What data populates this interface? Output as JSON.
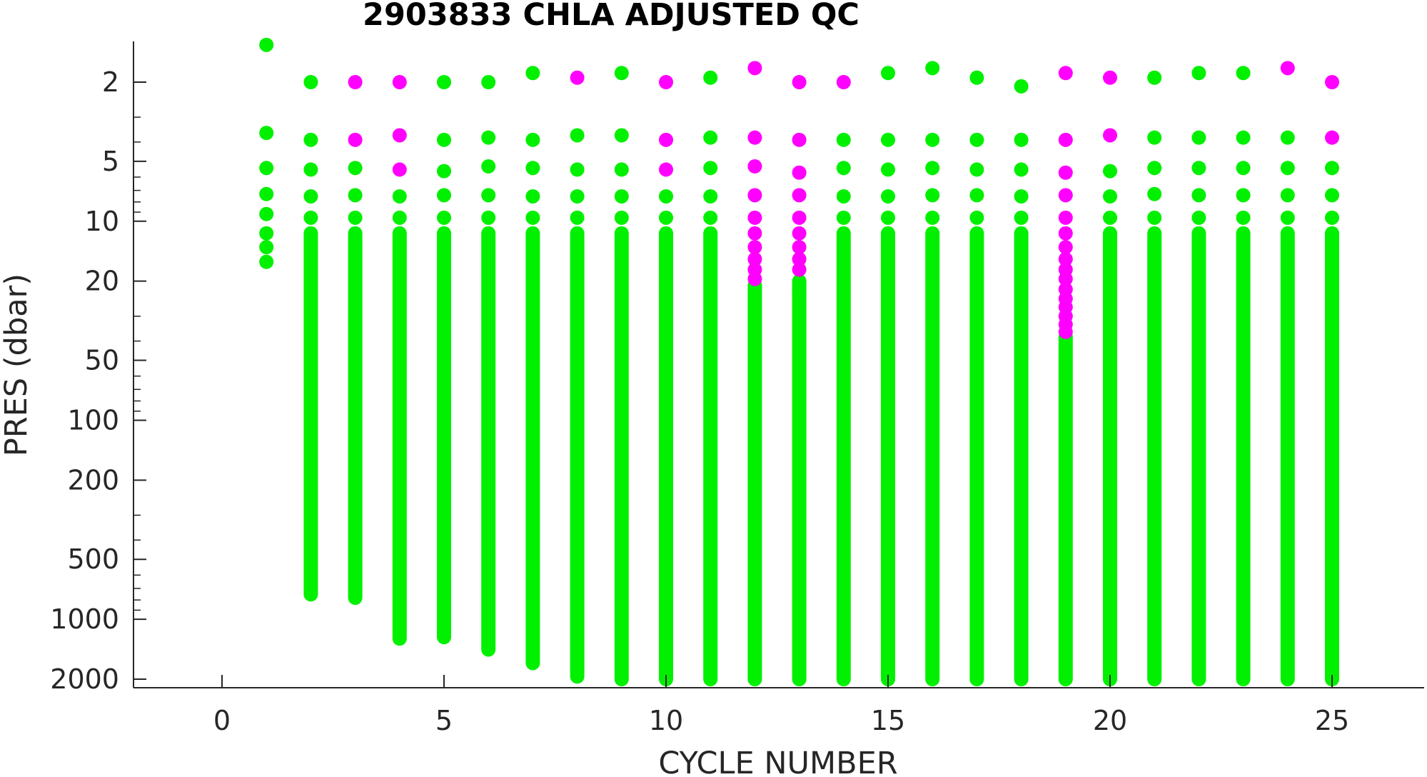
{
  "chart_data": {
    "type": "scatter",
    "title": "2903833  CHLA ADJUSTED QC",
    "xlabel": "CYCLE NUMBER",
    "ylabel": "PRES (dbar)",
    "xlim": [
      -2,
      27
    ],
    "ylim": [
      1.2,
      2100
    ],
    "y_scale": "log",
    "y_reversed": true,
    "grid": false,
    "xticks": [
      0,
      5,
      10,
      15,
      20,
      25
    ],
    "xtick_labels": [
      "0",
      "5",
      "10",
      "15",
      "20",
      "25"
    ],
    "yticks": [
      2,
      5,
      10,
      20,
      50,
      100,
      200,
      500,
      1000,
      2000
    ],
    "ytick_labels": [
      "2",
      "5",
      "10",
      "20",
      "50",
      "100",
      "200",
      "500",
      "1000",
      "2000"
    ],
    "colors": {
      "good": "#00f000",
      "flagged": "#ff00ff"
    },
    "legend": "none",
    "series": [
      {
        "color": "#00f000",
        "points": [
          [
            1,
            1.3
          ],
          [
            1,
            3.6
          ],
          [
            1,
            5.4
          ],
          [
            1,
            7.3
          ],
          [
            1,
            9.2
          ],
          [
            1,
            11.5
          ],
          [
            1,
            13.5
          ],
          [
            1,
            16
          ],
          [
            2,
            2.0
          ],
          [
            2,
            3.9
          ],
          [
            2,
            5.5
          ],
          [
            2,
            7.5
          ],
          [
            2,
            9.6
          ],
          [
            3,
            5.4
          ],
          [
            3,
            7.4
          ],
          [
            3,
            9.6
          ],
          [
            4,
            7.5
          ],
          [
            4,
            9.6
          ],
          [
            5,
            2.0
          ],
          [
            5,
            3.9
          ],
          [
            5,
            5.6
          ],
          [
            5,
            7.4
          ],
          [
            5,
            9.6
          ],
          [
            6,
            2.0
          ],
          [
            6,
            3.8
          ],
          [
            6,
            5.3
          ],
          [
            6,
            7.4
          ],
          [
            6,
            9.6
          ],
          [
            7,
            1.8
          ],
          [
            7,
            3.9
          ],
          [
            7,
            5.4
          ],
          [
            7,
            7.5
          ],
          [
            7,
            9.6
          ],
          [
            8,
            3.7
          ],
          [
            8,
            5.5
          ],
          [
            8,
            7.5
          ],
          [
            8,
            9.6
          ],
          [
            9,
            1.8
          ],
          [
            9,
            3.7
          ],
          [
            9,
            5.5
          ],
          [
            9,
            7.5
          ],
          [
            9,
            9.6
          ],
          [
            10,
            7.5
          ],
          [
            10,
            9.6
          ],
          [
            11,
            1.9
          ],
          [
            11,
            3.8
          ],
          [
            11,
            5.4
          ],
          [
            11,
            7.5
          ],
          [
            11,
            9.6
          ],
          [
            13,
            22
          ],
          [
            14,
            3.9
          ],
          [
            14,
            5.4
          ],
          [
            14,
            7.5
          ],
          [
            14,
            9.6
          ],
          [
            15,
            1.8
          ],
          [
            15,
            3.9
          ],
          [
            15,
            5.5
          ],
          [
            15,
            7.5
          ],
          [
            15,
            9.6
          ],
          [
            16,
            1.7
          ],
          [
            16,
            3.9
          ],
          [
            16,
            5.4
          ],
          [
            16,
            7.4
          ],
          [
            16,
            9.6
          ],
          [
            17,
            1.9
          ],
          [
            17,
            3.9
          ],
          [
            17,
            5.5
          ],
          [
            17,
            7.4
          ],
          [
            17,
            9.6
          ],
          [
            18,
            2.1
          ],
          [
            18,
            3.9
          ],
          [
            18,
            5.5
          ],
          [
            18,
            7.5
          ],
          [
            18,
            9.6
          ],
          [
            20,
            5.6
          ],
          [
            20,
            7.5
          ],
          [
            20,
            9.6
          ],
          [
            21,
            1.9
          ],
          [
            21,
            3.8
          ],
          [
            21,
            5.4
          ],
          [
            21,
            7.3
          ],
          [
            21,
            9.6
          ],
          [
            22,
            1.8
          ],
          [
            22,
            3.8
          ],
          [
            22,
            5.4
          ],
          [
            22,
            7.4
          ],
          [
            22,
            9.6
          ],
          [
            23,
            1.8
          ],
          [
            23,
            3.8
          ],
          [
            23,
            5.4
          ],
          [
            23,
            7.4
          ],
          [
            23,
            9.6
          ],
          [
            24,
            3.8
          ],
          [
            24,
            5.4
          ],
          [
            24,
            7.4
          ],
          [
            24,
            9.6
          ],
          [
            25,
            5.4
          ],
          [
            25,
            7.4
          ],
          [
            25,
            9.6
          ]
        ],
        "columns": [
          {
            "x": 2,
            "from": 11.5,
            "to": 750
          },
          {
            "x": 3,
            "from": 11.5,
            "to": 780
          },
          {
            "x": 4,
            "from": 11.5,
            "to": 1250
          },
          {
            "x": 5,
            "from": 11.5,
            "to": 1230
          },
          {
            "x": 6,
            "from": 11.5,
            "to": 1420
          },
          {
            "x": 7,
            "from": 11.5,
            "to": 1660
          },
          {
            "x": 8,
            "from": 11.5,
            "to": 1940
          },
          {
            "x": 9,
            "from": 11.5,
            "to": 2000
          },
          {
            "x": 10,
            "from": 11.5,
            "to": 2000
          },
          {
            "x": 11,
            "from": 11.5,
            "to": 2000
          },
          {
            "x": 12,
            "from": 21,
            "to": 2000
          },
          {
            "x": 13,
            "from": 20,
            "to": 2000
          },
          {
            "x": 14,
            "from": 11.5,
            "to": 2000
          },
          {
            "x": 15,
            "from": 11.5,
            "to": 2000
          },
          {
            "x": 16,
            "from": 11.5,
            "to": 2000
          },
          {
            "x": 17,
            "from": 11.5,
            "to": 2000
          },
          {
            "x": 18,
            "from": 11.5,
            "to": 2000
          },
          {
            "x": 19,
            "from": 38,
            "to": 2000
          },
          {
            "x": 20,
            "from": 11.5,
            "to": 2000
          },
          {
            "x": 21,
            "from": 11.5,
            "to": 2000
          },
          {
            "x": 22,
            "from": 11.5,
            "to": 2000
          },
          {
            "x": 23,
            "from": 11.5,
            "to": 2000
          },
          {
            "x": 24,
            "from": 11.5,
            "to": 2000
          },
          {
            "x": 25,
            "from": 11.5,
            "to": 2000
          }
        ]
      },
      {
        "color": "#ff00ff",
        "points": [
          [
            3,
            2.0
          ],
          [
            3,
            3.9
          ],
          [
            4,
            2.0
          ],
          [
            4,
            3.7
          ],
          [
            4,
            5.5
          ],
          [
            8,
            1.9
          ],
          [
            10,
            2.0
          ],
          [
            10,
            3.9
          ],
          [
            10,
            5.5
          ],
          [
            12,
            1.7
          ],
          [
            12,
            3.8
          ],
          [
            12,
            5.3
          ],
          [
            12,
            7.4
          ],
          [
            12,
            9.6
          ],
          [
            12,
            11.5
          ],
          [
            12,
            13.5
          ],
          [
            12,
            15.5
          ],
          [
            12,
            17.5
          ],
          [
            12,
            19.5
          ],
          [
            13,
            2.0
          ],
          [
            13,
            3.9
          ],
          [
            13,
            5.7
          ],
          [
            13,
            7.4
          ],
          [
            13,
            9.6
          ],
          [
            13,
            11.5
          ],
          [
            13,
            13.5
          ],
          [
            13,
            15.5
          ],
          [
            13,
            17.5
          ],
          [
            14,
            2.0
          ],
          [
            19,
            1.8
          ],
          [
            19,
            3.9
          ],
          [
            19,
            5.7
          ],
          [
            19,
            7.4
          ],
          [
            19,
            9.6
          ],
          [
            19,
            11.5
          ],
          [
            19,
            13.5
          ],
          [
            19,
            15.5
          ],
          [
            19,
            17.5
          ],
          [
            19,
            19.5
          ],
          [
            19,
            22
          ],
          [
            19,
            24.5
          ],
          [
            19,
            27
          ],
          [
            19,
            30
          ],
          [
            19,
            33
          ],
          [
            19,
            36
          ],
          [
            20,
            1.9
          ],
          [
            20,
            3.7
          ],
          [
            24,
            1.7
          ],
          [
            25,
            2.0
          ],
          [
            25,
            3.8
          ]
        ],
        "columns": []
      }
    ]
  }
}
